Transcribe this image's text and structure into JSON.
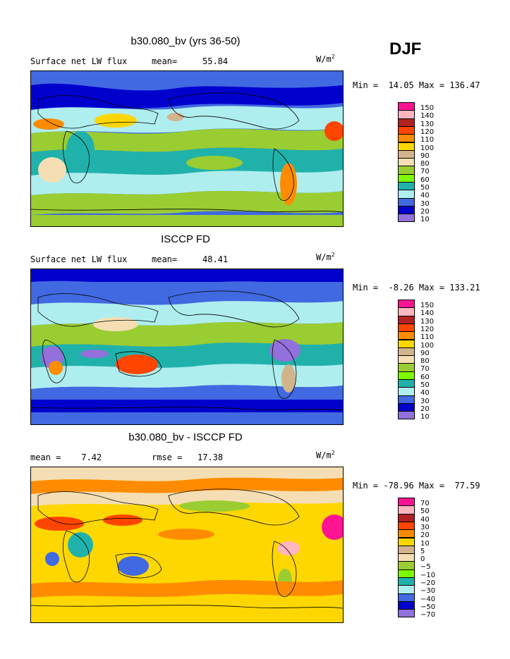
{
  "season": "DJF",
  "panels": [
    {
      "title": "b30.080_bv (yrs 36-50)",
      "left_label": "Surface net LW flux",
      "stat_label": "mean=",
      "stat_value": "55.84",
      "unit_base": "W/m",
      "unit_exp": "2",
      "minmax": "Min =  14.05 Max = 136.47",
      "legend": {
        "labels": [
          "150",
          "140",
          "130",
          "120",
          "110",
          "100",
          "90",
          "80",
          "70",
          "60",
          "50",
          "40",
          "30",
          "20",
          "10"
        ],
        "colors": [
          "#ff1493",
          "#ffb6c1",
          "#b22222",
          "#ff4500",
          "#ff8c00",
          "#ffd700",
          "#d2b48c",
          "#f5deb3",
          "#9acd32",
          "#7cfc00",
          "#20b2aa",
          "#afeeee",
          "#4169e1",
          "#0000cd",
          "#9370db"
        ]
      }
    },
    {
      "title": "ISCCP FD",
      "left_label": "Surface net LW flux",
      "stat_label": "mean=",
      "stat_value": "48.41",
      "unit_base": "W/m",
      "unit_exp": "2",
      "minmax": "Min =  -8.26 Max = 133.21",
      "legend": {
        "labels": [
          "150",
          "140",
          "130",
          "120",
          "110",
          "100",
          "90",
          "80",
          "70",
          "60",
          "50",
          "40",
          "30",
          "20",
          "10"
        ],
        "colors": [
          "#ff1493",
          "#ffb6c1",
          "#b22222",
          "#ff4500",
          "#ff8c00",
          "#ffd700",
          "#d2b48c",
          "#f5deb3",
          "#9acd32",
          "#7cfc00",
          "#20b2aa",
          "#afeeee",
          "#4169e1",
          "#0000cd",
          "#9370db"
        ]
      }
    },
    {
      "title": "b30.080_bv - ISCCP FD",
      "left_label": "mean =    7.42",
      "stat_label": "rmse =",
      "stat_value": "17.38",
      "unit_base": "W/m",
      "unit_exp": "2",
      "minmax": "Min = -78.96 Max =  77.59",
      "legend": {
        "labels": [
          "70",
          "50",
          "40",
          "30",
          "20",
          "10",
          "5",
          "0",
          "-5",
          "-10",
          "-20",
          "-30",
          "-40",
          "-50",
          "-70"
        ],
        "colors": [
          "#ff1493",
          "#ffb6c1",
          "#b22222",
          "#ff4500",
          "#ff8c00",
          "#ffd700",
          "#d2b48c",
          "#f5deb3",
          "#9acd32",
          "#7cfc00",
          "#20b2aa",
          "#afeeee",
          "#4169e1",
          "#0000cd",
          "#9370db"
        ]
      }
    }
  ]
}
